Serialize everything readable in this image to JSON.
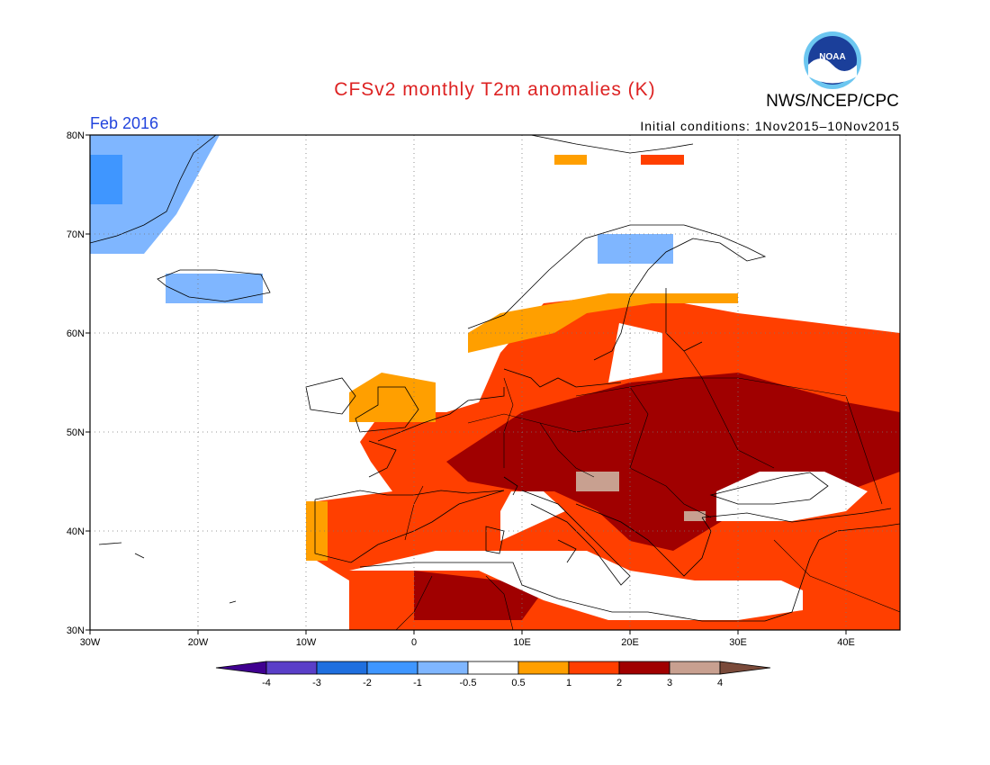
{
  "title": "CFSv2 monthly T2m anomalies (K)",
  "agency": "NWS/NCEP/CPC",
  "logo_text": "NOAA",
  "period": "Feb 2016",
  "initial_conditions": "Initial conditions: 1Nov2015–10Nov2015",
  "map": {
    "lon_range": [
      -30,
      45
    ],
    "lat_range": [
      30,
      80
    ],
    "lat_ticks": [
      {
        "value": 80,
        "label": "80N"
      },
      {
        "value": 70,
        "label": "70N"
      },
      {
        "value": 60,
        "label": "60N"
      },
      {
        "value": 50,
        "label": "50N"
      },
      {
        "value": 40,
        "label": "40N"
      },
      {
        "value": 30,
        "label": "30N"
      }
    ],
    "lon_ticks": [
      {
        "value": -30,
        "label": "30W"
      },
      {
        "value": -20,
        "label": "20W"
      },
      {
        "value": -10,
        "label": "10W"
      },
      {
        "value": 0,
        "label": "0"
      },
      {
        "value": 10,
        "label": "10E"
      },
      {
        "value": 20,
        "label": "20E"
      },
      {
        "value": 30,
        "label": "30E"
      },
      {
        "value": 40,
        "label": "40E"
      }
    ],
    "regions": [
      {
        "level": "1-2",
        "color": "#ff3f00",
        "points": [
          [
            -6,
            30
          ],
          [
            45,
            30
          ],
          [
            45,
            60
          ],
          [
            30,
            62
          ],
          [
            20,
            64
          ],
          [
            12,
            63
          ],
          [
            8,
            58
          ],
          [
            6,
            53
          ],
          [
            3,
            52
          ],
          [
            -3,
            52
          ],
          [
            -5,
            49
          ],
          [
            -4,
            47
          ],
          [
            -2,
            44
          ],
          [
            -9,
            43
          ],
          [
            -9,
            37
          ],
          [
            -6,
            35
          ]
        ]
      },
      {
        "level": "0.5-1",
        "color": "#ff9f00",
        "points": [
          [
            -6,
            51
          ],
          [
            2,
            51
          ],
          [
            2,
            55
          ],
          [
            -3,
            56
          ],
          [
            -6,
            54
          ]
        ]
      },
      {
        "level": "0.5-1",
        "color": "#ff9f00",
        "points": [
          [
            -10,
            37
          ],
          [
            -8,
            37
          ],
          [
            -8,
            43
          ],
          [
            -10,
            43
          ]
        ]
      },
      {
        "level": "0.5-1",
        "color": "#ff9f00",
        "points": [
          [
            5,
            58
          ],
          [
            13,
            60
          ],
          [
            16,
            62
          ],
          [
            22,
            63
          ],
          [
            30,
            63
          ],
          [
            30,
            64
          ],
          [
            18,
            64
          ],
          [
            8,
            62
          ],
          [
            5,
            60
          ]
        ]
      },
      {
        "level": "2-3",
        "color": "#a00000",
        "points": [
          [
            3,
            47
          ],
          [
            10,
            52
          ],
          [
            20,
            55
          ],
          [
            30,
            56
          ],
          [
            40,
            53
          ],
          [
            45,
            52
          ],
          [
            45,
            46
          ],
          [
            40,
            44
          ],
          [
            35,
            44
          ],
          [
            30,
            42
          ],
          [
            24,
            38
          ],
          [
            20,
            39
          ],
          [
            17,
            42
          ],
          [
            13,
            44
          ],
          [
            10,
            44
          ],
          [
            5,
            45
          ]
        ]
      },
      {
        "level": "2-3",
        "color": "#a00000",
        "points": [
          [
            0,
            31
          ],
          [
            10,
            31
          ],
          [
            12,
            34
          ],
          [
            8,
            35
          ],
          [
            0,
            36
          ]
        ]
      },
      {
        "level": "3-4",
        "color": "#c8a090",
        "points": [
          [
            15,
            44
          ],
          [
            19,
            44
          ],
          [
            19,
            46
          ],
          [
            15,
            46
          ]
        ]
      },
      {
        "level": "3-4",
        "color": "#c8a090",
        "points": [
          [
            25,
            41
          ],
          [
            27,
            41
          ],
          [
            27,
            42
          ],
          [
            25,
            42
          ]
        ]
      },
      {
        "level": "<0.5",
        "color": "#ffffff",
        "points": [
          [
            -6,
            36
          ],
          [
            2,
            38
          ],
          [
            10,
            38
          ],
          [
            16,
            38
          ],
          [
            20,
            36
          ],
          [
            26,
            35
          ],
          [
            34,
            35
          ],
          [
            36,
            34
          ],
          [
            36,
            32
          ],
          [
            30,
            31
          ],
          [
            24,
            31
          ],
          [
            18,
            31
          ],
          [
            12,
            33
          ],
          [
            6,
            36
          ]
        ]
      },
      {
        "level": "<0.5",
        "color": "#ffffff",
        "points": [
          [
            8,
            39
          ],
          [
            10,
            40
          ],
          [
            14,
            42
          ],
          [
            12,
            44
          ],
          [
            9,
            44
          ],
          [
            8,
            42
          ]
        ]
      },
      {
        "level": "<0.5",
        "color": "#ffffff",
        "points": [
          [
            28,
            41
          ],
          [
            35,
            41
          ],
          [
            40,
            42
          ],
          [
            42,
            44
          ],
          [
            38,
            46
          ],
          [
            32,
            46
          ],
          [
            28,
            44
          ]
        ]
      },
      {
        "level": "<0.5",
        "color": "#ffffff",
        "points": [
          [
            18,
            55
          ],
          [
            23,
            56
          ],
          [
            23,
            60
          ],
          [
            19,
            61
          ]
        ]
      },
      {
        "level": "-1--0.5",
        "color": "#7fb6ff",
        "points": [
          [
            -30,
            68
          ],
          [
            -25,
            68
          ],
          [
            -22,
            72
          ],
          [
            -20,
            76
          ],
          [
            -18,
            80
          ],
          [
            -30,
            80
          ]
        ]
      },
      {
        "level": "-2--1",
        "color": "#3f96ff",
        "points": [
          [
            -30,
            73
          ],
          [
            -27,
            73
          ],
          [
            -27,
            78
          ],
          [
            -30,
            78
          ]
        ]
      },
      {
        "level": "-1--0.5",
        "color": "#7fb6ff",
        "points": [
          [
            -23,
            63
          ],
          [
            -14,
            63
          ],
          [
            -14,
            66
          ],
          [
            -23,
            66
          ]
        ]
      },
      {
        "level": "-1--0.5",
        "color": "#7fb6ff",
        "points": [
          [
            17,
            67
          ],
          [
            24,
            67
          ],
          [
            24,
            70
          ],
          [
            17,
            70
          ]
        ]
      },
      {
        "level": "0.5-1",
        "color": "#ff9f00",
        "points": [
          [
            13,
            77
          ],
          [
            16,
            77
          ],
          [
            16,
            78
          ],
          [
            13,
            78
          ]
        ]
      },
      {
        "level": "1-2",
        "color": "#ff3f00",
        "points": [
          [
            21,
            77
          ],
          [
            25,
            77
          ],
          [
            25,
            78
          ],
          [
            21,
            78
          ]
        ]
      }
    ]
  },
  "colorbar": {
    "labels": [
      "-4",
      "-3",
      "-2",
      "-1",
      "-0.5",
      "0.5",
      "1",
      "2",
      "3",
      "4"
    ],
    "low_color": "#400090",
    "high_color": "#7a4a3a",
    "colors": [
      "#5a3fc8",
      "#1f6fdf",
      "#3f96ff",
      "#7fb6ff",
      "#ffffff",
      "#ff9f00",
      "#ff3f00",
      "#a00000",
      "#c8a090"
    ]
  }
}
